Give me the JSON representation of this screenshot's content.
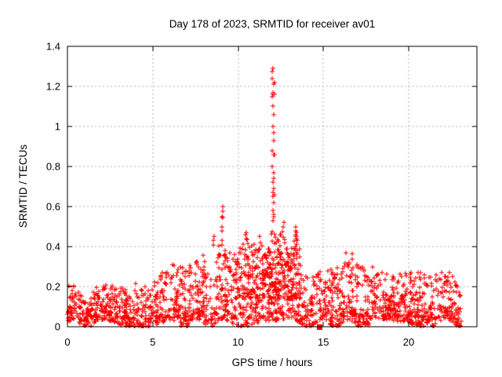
{
  "colors": {
    "marker": "#ff0000",
    "grid": "#b9b9b9",
    "border": "#000000",
    "background": "#ffffff",
    "text": "#000000"
  },
  "chart_data": {
    "type": "scatter",
    "title": "Day 178 of 2023, SRMTID for receiver av01",
    "xlabel": "GPS time / hours",
    "ylabel": "SRMTID / TECUs",
    "xlim": [
      0,
      24
    ],
    "ylim": [
      0,
      1.4
    ],
    "xticks": [
      0,
      5,
      10,
      15,
      20
    ],
    "xtick_labels": [
      "0",
      "5",
      "10",
      "15",
      "20"
    ],
    "yticks": [
      0,
      0.2,
      0.4,
      0.6,
      0.8,
      1.0,
      1.2,
      1.4
    ],
    "ytick_labels": [
      "0",
      "0.2",
      "0.4",
      "0.6",
      "0.8",
      "1",
      "1.2",
      "1.4"
    ],
    "grid": true,
    "legend": "none",
    "marker": "plus",
    "marker_size_px": 7,
    "x_data_range": [
      0.02,
      23.1
    ],
    "n_points": 1900,
    "n_extra_midday": 260,
    "midday_x_range": [
      9.8,
      13.7
    ],
    "baseline_min": 0.015,
    "seed": 20230178,
    "envelope": [
      [
        0,
        0.2
      ],
      [
        0.5,
        0.19
      ],
      [
        1,
        0.14
      ],
      [
        1.5,
        0.18
      ],
      [
        2,
        0.21
      ],
      [
        2.5,
        0.2
      ],
      [
        3,
        0.2
      ],
      [
        3.5,
        0.21
      ],
      [
        4,
        0.24
      ],
      [
        4.5,
        0.22
      ],
      [
        5,
        0.23
      ],
      [
        5.5,
        0.26
      ],
      [
        6,
        0.28
      ],
      [
        6.5,
        0.32
      ],
      [
        7,
        0.33
      ],
      [
        7.5,
        0.31
      ],
      [
        8,
        0.36
      ],
      [
        8.5,
        0.44
      ],
      [
        8.8,
        0.4
      ],
      [
        9.1,
        0.42
      ],
      [
        9.5,
        0.36
      ],
      [
        10,
        0.42
      ],
      [
        10.5,
        0.47
      ],
      [
        11,
        0.43
      ],
      [
        11.3,
        0.46
      ],
      [
        11.7,
        0.42
      ],
      [
        12,
        0.52
      ],
      [
        12.3,
        0.5
      ],
      [
        12.7,
        0.52
      ],
      [
        13,
        0.42
      ],
      [
        13.4,
        0.5
      ],
      [
        13.7,
        0.36
      ],
      [
        14,
        0.3
      ],
      [
        14.5,
        0.26
      ],
      [
        15,
        0.28
      ],
      [
        15.5,
        0.31
      ],
      [
        16,
        0.33
      ],
      [
        16.5,
        0.37
      ],
      [
        17,
        0.33
      ],
      [
        17.5,
        0.31
      ],
      [
        18,
        0.29
      ],
      [
        18.5,
        0.26
      ],
      [
        19,
        0.25
      ],
      [
        19.5,
        0.26
      ],
      [
        20,
        0.28
      ],
      [
        20.7,
        0.29
      ],
      [
        21,
        0.28
      ],
      [
        21.5,
        0.31
      ],
      [
        22,
        0.27
      ],
      [
        22.5,
        0.26
      ],
      [
        23,
        0.22
      ]
    ],
    "outlier_columns": [
      {
        "x": 9.07,
        "values": [
          0.6,
          0.575,
          0.55,
          0.545,
          0.5,
          0.48,
          0.43
        ]
      },
      {
        "x": 12.05,
        "values": [
          1.29,
          1.275,
          1.24,
          1.21,
          1.17,
          1.16,
          1.15,
          1.1,
          1.06,
          1.0,
          0.97,
          0.93,
          0.88,
          0.86,
          0.8,
          0.77,
          0.74,
          0.72,
          0.69,
          0.67,
          0.65,
          0.62,
          0.58,
          0.56,
          0.53
        ]
      },
      {
        "x": 12.12,
        "values": [
          1.22,
          1.16,
          0.86,
          0.66,
          0.55
        ]
      },
      {
        "x": 13.42,
        "values": [
          0.5,
          0.48,
          0.46,
          0.44,
          0.43,
          0.41,
          0.4,
          0.38,
          0.36,
          0.34
        ]
      },
      {
        "x": 10.45,
        "values": [
          0.47,
          0.46
        ]
      },
      {
        "x": 12.68,
        "values": [
          0.52,
          0.5
        ]
      },
      {
        "x": 8.55,
        "values": [
          0.45,
          0.43
        ]
      },
      {
        "x": 11.3,
        "values": [
          0.45,
          0.42
        ]
      }
    ],
    "special_points": [
      {
        "x": 14.74,
        "y": 0.0,
        "marker": "filled-square"
      }
    ]
  }
}
